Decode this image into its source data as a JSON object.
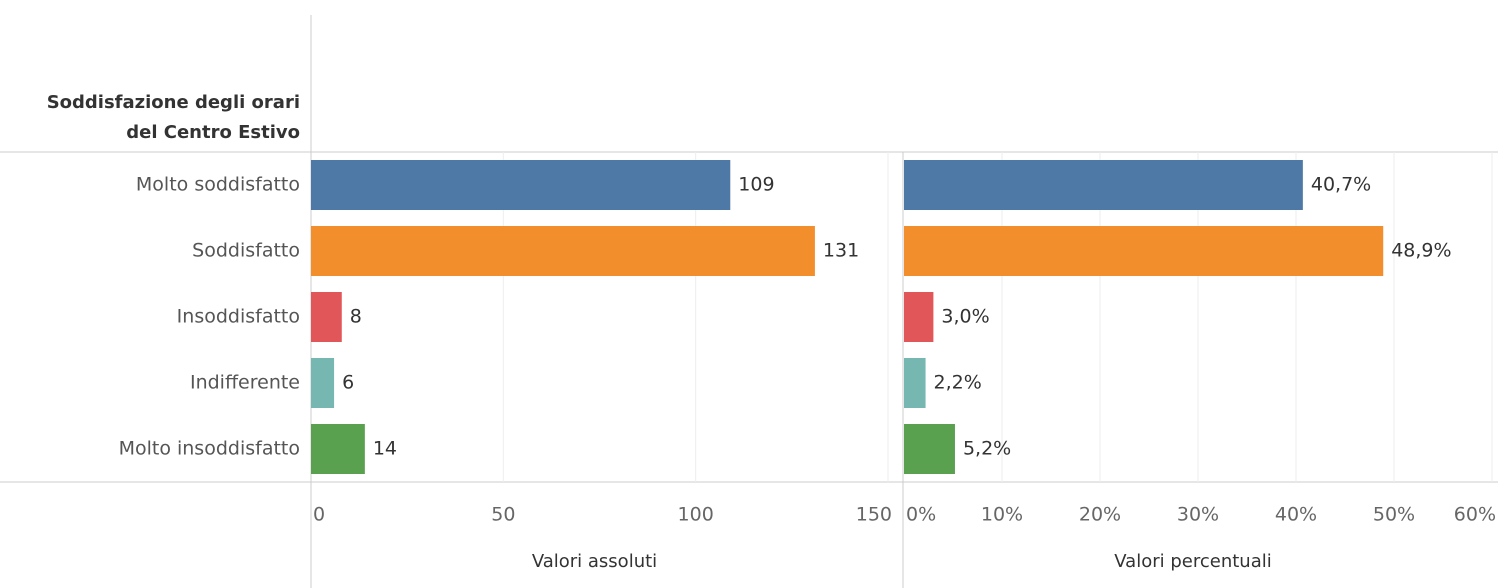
{
  "chart_data": [
    {
      "type": "bar",
      "orientation": "horizontal",
      "row_header": [
        "Soddisfazione degli orari",
        "del Centro Estivo"
      ],
      "categories": [
        "Molto soddisfatto",
        "Soddisfatto",
        "Insoddisfatto",
        "Indifferente",
        "Molto insoddisfatto"
      ],
      "values": [
        109,
        131,
        8,
        6,
        14
      ],
      "colors": [
        "#4e79a7",
        "#f28e2b",
        "#e15759",
        "#76b7b2",
        "#59a14f"
      ],
      "xlim": [
        0,
        150
      ],
      "xticks": [
        0,
        50,
        100,
        150
      ],
      "xlabel": "Valori assoluti",
      "grid": true
    },
    {
      "type": "bar",
      "orientation": "horizontal",
      "values": [
        40.7,
        48.9,
        3.0,
        2.2,
        5.2
      ],
      "value_labels": [
        "40,7%",
        "48,9%",
        "3,0%",
        "2,2%",
        "5,2%"
      ],
      "colors": [
        "#4e79a7",
        "#f28e2b",
        "#e15759",
        "#76b7b2",
        "#59a14f"
      ],
      "xlim": [
        0,
        60
      ],
      "xticks": [
        {
          "value": 0,
          "label": "0%"
        },
        {
          "value": 10,
          "label": "10%"
        },
        {
          "value": 20,
          "label": "20%"
        },
        {
          "value": 30,
          "label": "30%"
        },
        {
          "value": 40,
          "label": "40%"
        },
        {
          "value": 50,
          "label": "50%"
        },
        {
          "value": 60,
          "label": "60%"
        }
      ],
      "xlabel": "Valori percentuali",
      "grid": true
    }
  ]
}
